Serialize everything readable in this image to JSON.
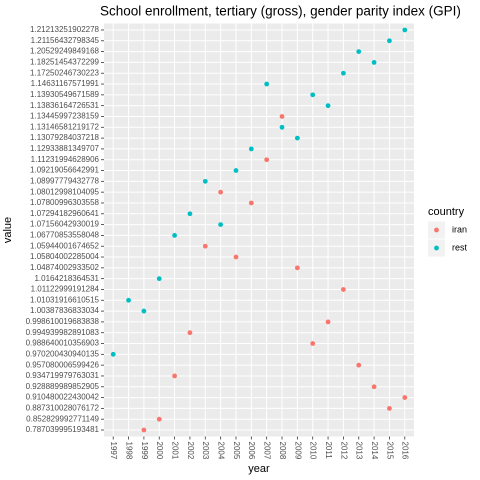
{
  "chart_data": {
    "type": "scatter",
    "title": "School enrollment, tertiary (gross), gender parity index (GPI)",
    "x_label": "year",
    "y_label": "value",
    "legend_title": "country",
    "legend": "right",
    "categories": [
      "1997",
      "1998",
      "1999",
      "2000",
      "2001",
      "2002",
      "2003",
      "2004",
      "2005",
      "2006",
      "2007",
      "2008",
      "2009",
      "2010",
      "2011",
      "2012",
      "2013",
      "2014",
      "2015",
      "2016"
    ],
    "yticks": [
      0.787039995193481,
      0.852829992771149,
      0.887310028076172,
      0.910480022430042,
      0.928889989852905,
      0.934719979763031,
      0.957080006599426,
      0.970200430940135,
      0.988640010356903,
      0.994939982891083,
      0.998610019683838,
      1.00387836833034,
      1.01031916610515,
      1.01122999191284,
      1.0164218364531,
      1.04874002933502,
      1.05804002285004,
      1.05944001674652,
      1.06770853558048,
      1.07156042930019,
      1.07294182960641,
      1.07800996303558,
      1.08012998104095,
      1.08997779432778,
      1.09219056642991,
      1.11231994628906,
      1.12933881349707,
      1.13079284037218,
      1.13146581219172,
      1.13445997238159,
      1.13836164726531,
      1.13930549671589,
      1.14631167571991,
      1.17250246730223,
      1.18251454372299,
      1.20529249849168,
      1.21156432798345,
      1.21213251902278
    ],
    "series": [
      {
        "name": "iran",
        "color": "#F8766D",
        "values": [
          null,
          null,
          0.787039995193481,
          0.852829992771149,
          0.934719979763031,
          0.994939982891083,
          1.05944001674652,
          1.08012998104095,
          1.05804002285004,
          1.07800996303558,
          1.11231994628906,
          1.13445997238159,
          1.04874002933502,
          0.988640010356903,
          0.998610019683838,
          1.01122999191284,
          0.957080006599426,
          0.928889989852905,
          0.887310028076172,
          0.910480022430042
        ]
      },
      {
        "name": "rest",
        "color": "#00BFC4",
        "values": [
          0.970200430940135,
          1.01031916610515,
          1.00387836833034,
          1.0164218364531,
          1.06770853558048,
          1.07294182960641,
          1.08997779432778,
          1.07156042930019,
          1.09219056642991,
          1.12933881349707,
          1.14631167571991,
          1.13146581219172,
          1.13079284037218,
          1.13930549671589,
          1.13836164726531,
          1.17250246730223,
          1.20529249849168,
          1.18251454372299,
          1.21156432798345,
          1.21213251902278
        ]
      }
    ],
    "grid": true
  }
}
